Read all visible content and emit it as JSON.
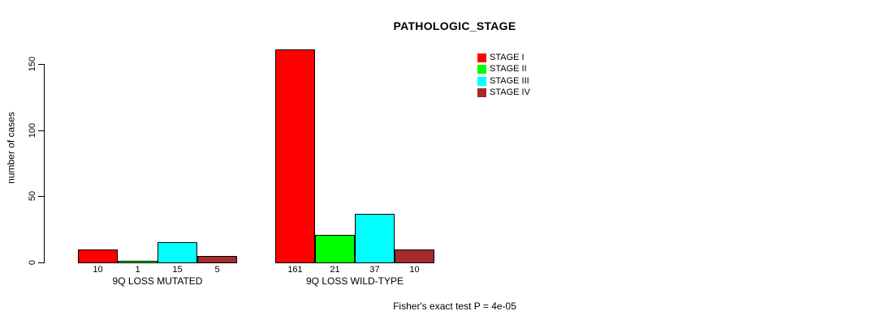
{
  "chart_data": {
    "type": "bar",
    "title": "PATHOLOGIC_STAGE",
    "ylabel": "number of cases",
    "xlabel": "",
    "categories": [
      "9Q LOSS MUTATED",
      "9Q LOSS WILD-TYPE"
    ],
    "series": [
      {
        "name": "STAGE I",
        "color": "#FF0000",
        "values": [
          10,
          161
        ]
      },
      {
        "name": "STAGE II",
        "color": "#00FF00",
        "values": [
          1,
          21
        ]
      },
      {
        "name": "STAGE III",
        "color": "#00FFFF",
        "values": [
          15,
          37
        ]
      },
      {
        "name": "STAGE IV",
        "color": "#A52A2A",
        "values": [
          5,
          10
        ]
      }
    ],
    "value_labels": [
      [
        10,
        1,
        15,
        5
      ],
      [
        161,
        21,
        37,
        10
      ]
    ],
    "yticks": [
      0,
      50,
      100,
      150
    ],
    "ylim": [
      0,
      150
    ],
    "grid": false,
    "legend_position": "top-right-inside",
    "bar_border_color": "#000000",
    "annotation": "Fisher's exact test P = 4e-05"
  }
}
